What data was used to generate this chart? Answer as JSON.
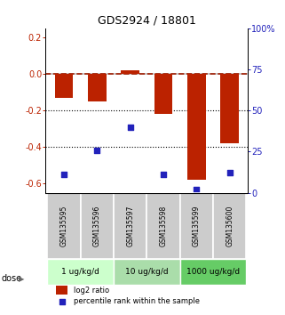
{
  "title": "GDS2924 / 18801",
  "samples": [
    "GSM135595",
    "GSM135596",
    "GSM135597",
    "GSM135598",
    "GSM135599",
    "GSM135600"
  ],
  "log2_ratio": [
    -0.13,
    -0.15,
    0.02,
    -0.22,
    -0.58,
    -0.38
  ],
  "percentile_rank": [
    11,
    26,
    40,
    11,
    2,
    12
  ],
  "bar_color": "#bb2200",
  "dot_color": "#2222bb",
  "dashed_line_color": "#cc2200",
  "ylabel_left": "",
  "ylabel_right": "",
  "ylim_left": [
    -0.65,
    0.25
  ],
  "ylim_right": [
    0,
    100
  ],
  "yticks_left": [
    0.2,
    0.0,
    -0.2,
    -0.4,
    -0.6
  ],
  "yticks_right": [
    100,
    75,
    50,
    25,
    0
  ],
  "doses": [
    {
      "label": "1 ug/kg/d",
      "samples": [
        0,
        1
      ],
      "color": "#ccffcc"
    },
    {
      "label": "10 ug/kg/d",
      "samples": [
        2,
        3
      ],
      "color": "#aaddaa"
    },
    {
      "label": "1000 ug/kg/d",
      "samples": [
        4,
        5
      ],
      "color": "#66cc66"
    }
  ],
  "dose_label": "dose",
  "legend_log2": "log2 ratio",
  "legend_pct": "percentile rank within the sample",
  "bar_width": 0.55,
  "dotted_lines": [
    -0.2,
    -0.4
  ],
  "background_color": "#ffffff",
  "sample_box_color": "#cccccc"
}
